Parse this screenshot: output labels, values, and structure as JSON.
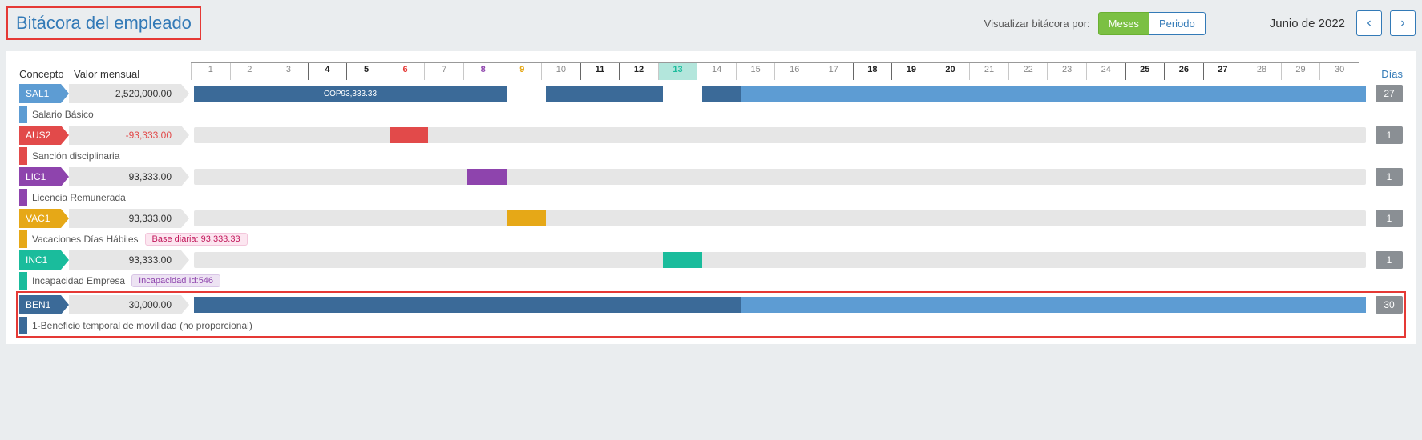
{
  "header": {
    "title": "Bitácora del empleado",
    "viewLabel": "Visualizar bitácora por:",
    "btnMeses": "Meses",
    "btnPeriodo": "Periodo",
    "month": "Junio de 2022"
  },
  "columns": {
    "concepto": "Concepto",
    "valor": "Valor mensual",
    "dias": "Días"
  },
  "calendar": {
    "numDays": 30,
    "days": [
      {
        "n": "1",
        "cls": ""
      },
      {
        "n": "2",
        "cls": ""
      },
      {
        "n": "3",
        "cls": ""
      },
      {
        "n": "4",
        "cls": "bold"
      },
      {
        "n": "5",
        "cls": "bold"
      },
      {
        "n": "6",
        "cls": "red"
      },
      {
        "n": "7",
        "cls": ""
      },
      {
        "n": "8",
        "cls": "purple"
      },
      {
        "n": "9",
        "cls": "orange"
      },
      {
        "n": "10",
        "cls": ""
      },
      {
        "n": "11",
        "cls": "bold"
      },
      {
        "n": "12",
        "cls": "bold"
      },
      {
        "n": "13",
        "cls": "today"
      },
      {
        "n": "14",
        "cls": ""
      },
      {
        "n": "15",
        "cls": ""
      },
      {
        "n": "16",
        "cls": ""
      },
      {
        "n": "17",
        "cls": ""
      },
      {
        "n": "18",
        "cls": "bold"
      },
      {
        "n": "19",
        "cls": "bold"
      },
      {
        "n": "20",
        "cls": "bold"
      },
      {
        "n": "21",
        "cls": ""
      },
      {
        "n": "22",
        "cls": ""
      },
      {
        "n": "23",
        "cls": ""
      },
      {
        "n": "24",
        "cls": ""
      },
      {
        "n": "25",
        "cls": "bold"
      },
      {
        "n": "26",
        "cls": "bold"
      },
      {
        "n": "27",
        "cls": "bold"
      },
      {
        "n": "28",
        "cls": ""
      },
      {
        "n": "29",
        "cls": ""
      },
      {
        "n": "30",
        "cls": ""
      }
    ]
  },
  "colors": {
    "salDark": "#3b6a98",
    "salLight": "#5d9cd3",
    "aus": "#e24a4a",
    "lic": "#8e44ad",
    "vac": "#e6a817",
    "inc": "#1abc9c",
    "benDark": "#3b6a98",
    "benLight": "#5d9cd3"
  },
  "rows": [
    {
      "code": "SAL1",
      "tagCls": "tag-sal",
      "value": "2,520,000.00",
      "neg": false,
      "desc": "Salario Básico",
      "barColor": "#5d9cd3",
      "days": "27",
      "track": {
        "bg": false,
        "segments": [
          {
            "start": 1,
            "end": 8,
            "color": "#3b6a98",
            "label": "COP93,333.33"
          },
          {
            "start": 10,
            "end": 12,
            "color": "#3b6a98"
          },
          {
            "start": 14,
            "end": 15,
            "color": "#3b6a98"
          },
          {
            "start": 15,
            "end": 30,
            "color": "#5d9cd3"
          }
        ]
      }
    },
    {
      "code": "AUS2",
      "tagCls": "tag-aus",
      "value": "-93,333.00",
      "neg": true,
      "desc": "Sanción disciplinaria",
      "barColor": "#e24a4a",
      "days": "1",
      "track": {
        "bg": true,
        "segments": [
          {
            "start": 6,
            "end": 6,
            "color": "#e24a4a"
          }
        ]
      }
    },
    {
      "code": "LIC1",
      "tagCls": "tag-lic",
      "value": "93,333.00",
      "neg": false,
      "desc": "Licencia Remunerada",
      "barColor": "#8e44ad",
      "days": "1",
      "track": {
        "bg": true,
        "segments": [
          {
            "start": 8,
            "end": 8,
            "color": "#8e44ad"
          }
        ]
      }
    },
    {
      "code": "VAC1",
      "tagCls": "tag-vac",
      "value": "93,333.00",
      "neg": false,
      "desc": "Vacaciones Días Hábiles",
      "barColor": "#e6a817",
      "days": "1",
      "pill": {
        "text": "Base diaria: 93,333.33",
        "cls": "pill-pink"
      },
      "track": {
        "bg": true,
        "segments": [
          {
            "start": 9,
            "end": 9,
            "color": "#e6a817"
          }
        ]
      }
    },
    {
      "code": "INC1",
      "tagCls": "tag-inc",
      "value": "93,333.00",
      "neg": false,
      "desc": "Incapacidad Empresa",
      "barColor": "#1abc9c",
      "days": "1",
      "pill": {
        "text": "Incapacidad Id:546",
        "cls": "pill-purple"
      },
      "track": {
        "bg": true,
        "segments": [
          {
            "start": 13,
            "end": 13,
            "color": "#1abc9c"
          }
        ]
      }
    },
    {
      "code": "BEN1",
      "tagCls": "tag-ben",
      "value": "30,000.00",
      "neg": false,
      "desc": "1-Beneficio temporal de movilidad (no proporcional)",
      "barColor": "#3b6a98",
      "days": "30",
      "highlight": true,
      "track": {
        "bg": false,
        "segments": [
          {
            "start": 1,
            "end": 15,
            "color": "#3b6a98"
          },
          {
            "start": 15,
            "end": 30,
            "color": "#5d9cd3"
          }
        ]
      }
    }
  ]
}
